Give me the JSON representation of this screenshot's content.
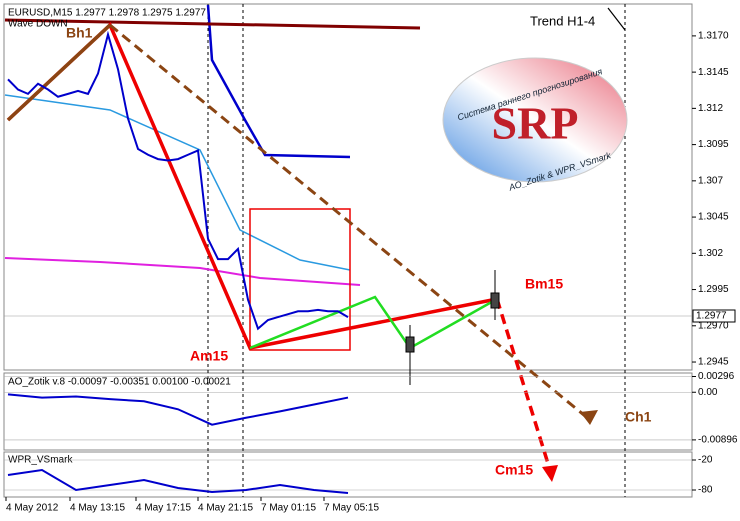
{
  "chart_data": [
    {
      "type": "line",
      "title": "EURUSD,M15  1.2977 1.2978 1.2975 1.2977",
      "subtitle": "Wave DOWN",
      "series": [
        {
          "name": "EURUSD",
          "color": "#0000cc",
          "values": [
            1.314,
            1.3133,
            1.313,
            1.3137,
            1.3133,
            1.3128,
            1.313,
            1.3132,
            1.313,
            1.3144,
            1.3171,
            1.3147,
            1.3113,
            1.3092,
            1.3088,
            1.3085,
            1.3084,
            1.3085,
            1.3088,
            1.3091,
            1.303,
            1.3016,
            1.3016,
            1.3023,
            1.2988,
            1.2968,
            1.2974,
            1.2976,
            1.2978,
            1.298,
            1.298,
            1.2981,
            1.298,
            1.298,
            1.2976
          ]
        }
      ],
      "ylim": [
        1.29395,
        1.3192
      ],
      "yticks": [
        {
          "value": 1.317,
          "label": "1.3170"
        },
        1.3145,
        1.312,
        1.3095,
        1.307,
        1.3045,
        1.302,
        1.2995,
        {
          "value": 1.297,
          "label": "1.2970"
        },
        1.2945
      ],
      "current_price": "1.2977",
      "annotations": [
        "Trend H1-4",
        "Bh1",
        "Am15",
        "Bm15",
        "Cm15",
        "Ch1"
      ],
      "logo": {
        "title": "SRP",
        "top": "Система раннего прогнозирования",
        "bottom": "AO_Zotik & WPR_VSmark"
      }
    },
    {
      "type": "line",
      "title": "AO_Zotik v.8 -0.00097 -0.00351 0.00100 -0.00021",
      "series": [
        {
          "name": "AO_Zotik",
          "color": "#0000cc",
          "values": [
            -0.0004,
            -0.001,
            -0.0008,
            -0.0013,
            -0.0017,
            -0.0032,
            -0.0061,
            -0.0048,
            -0.0036,
            -0.0023,
            -0.001
          ]
        }
      ],
      "ylim": [
        -0.01086,
        0.00362
      ],
      "yticks": [
        0.00296,
        {
          "value": 0,
          "label": "0.00"
        },
        -0.00896
      ]
    },
    {
      "type": "line",
      "title": "WPR_VSmark",
      "series": [
        {
          "name": "WPR_VSmark",
          "color": "#0000cc",
          "values": [
            -50,
            -40,
            -80,
            -70,
            -60,
            -76,
            -84,
            -80,
            -70,
            -80,
            -86
          ]
        }
      ],
      "ylim": [
        -94,
        -4
      ],
      "yticks": [
        -20,
        -80
      ]
    }
  ],
  "time_axis": [
    "4 May 2012",
    "4 May 13:15",
    "4 May 17:15",
    "4 May 21:15",
    "7 May 01:15",
    "7 May 05:15"
  ]
}
